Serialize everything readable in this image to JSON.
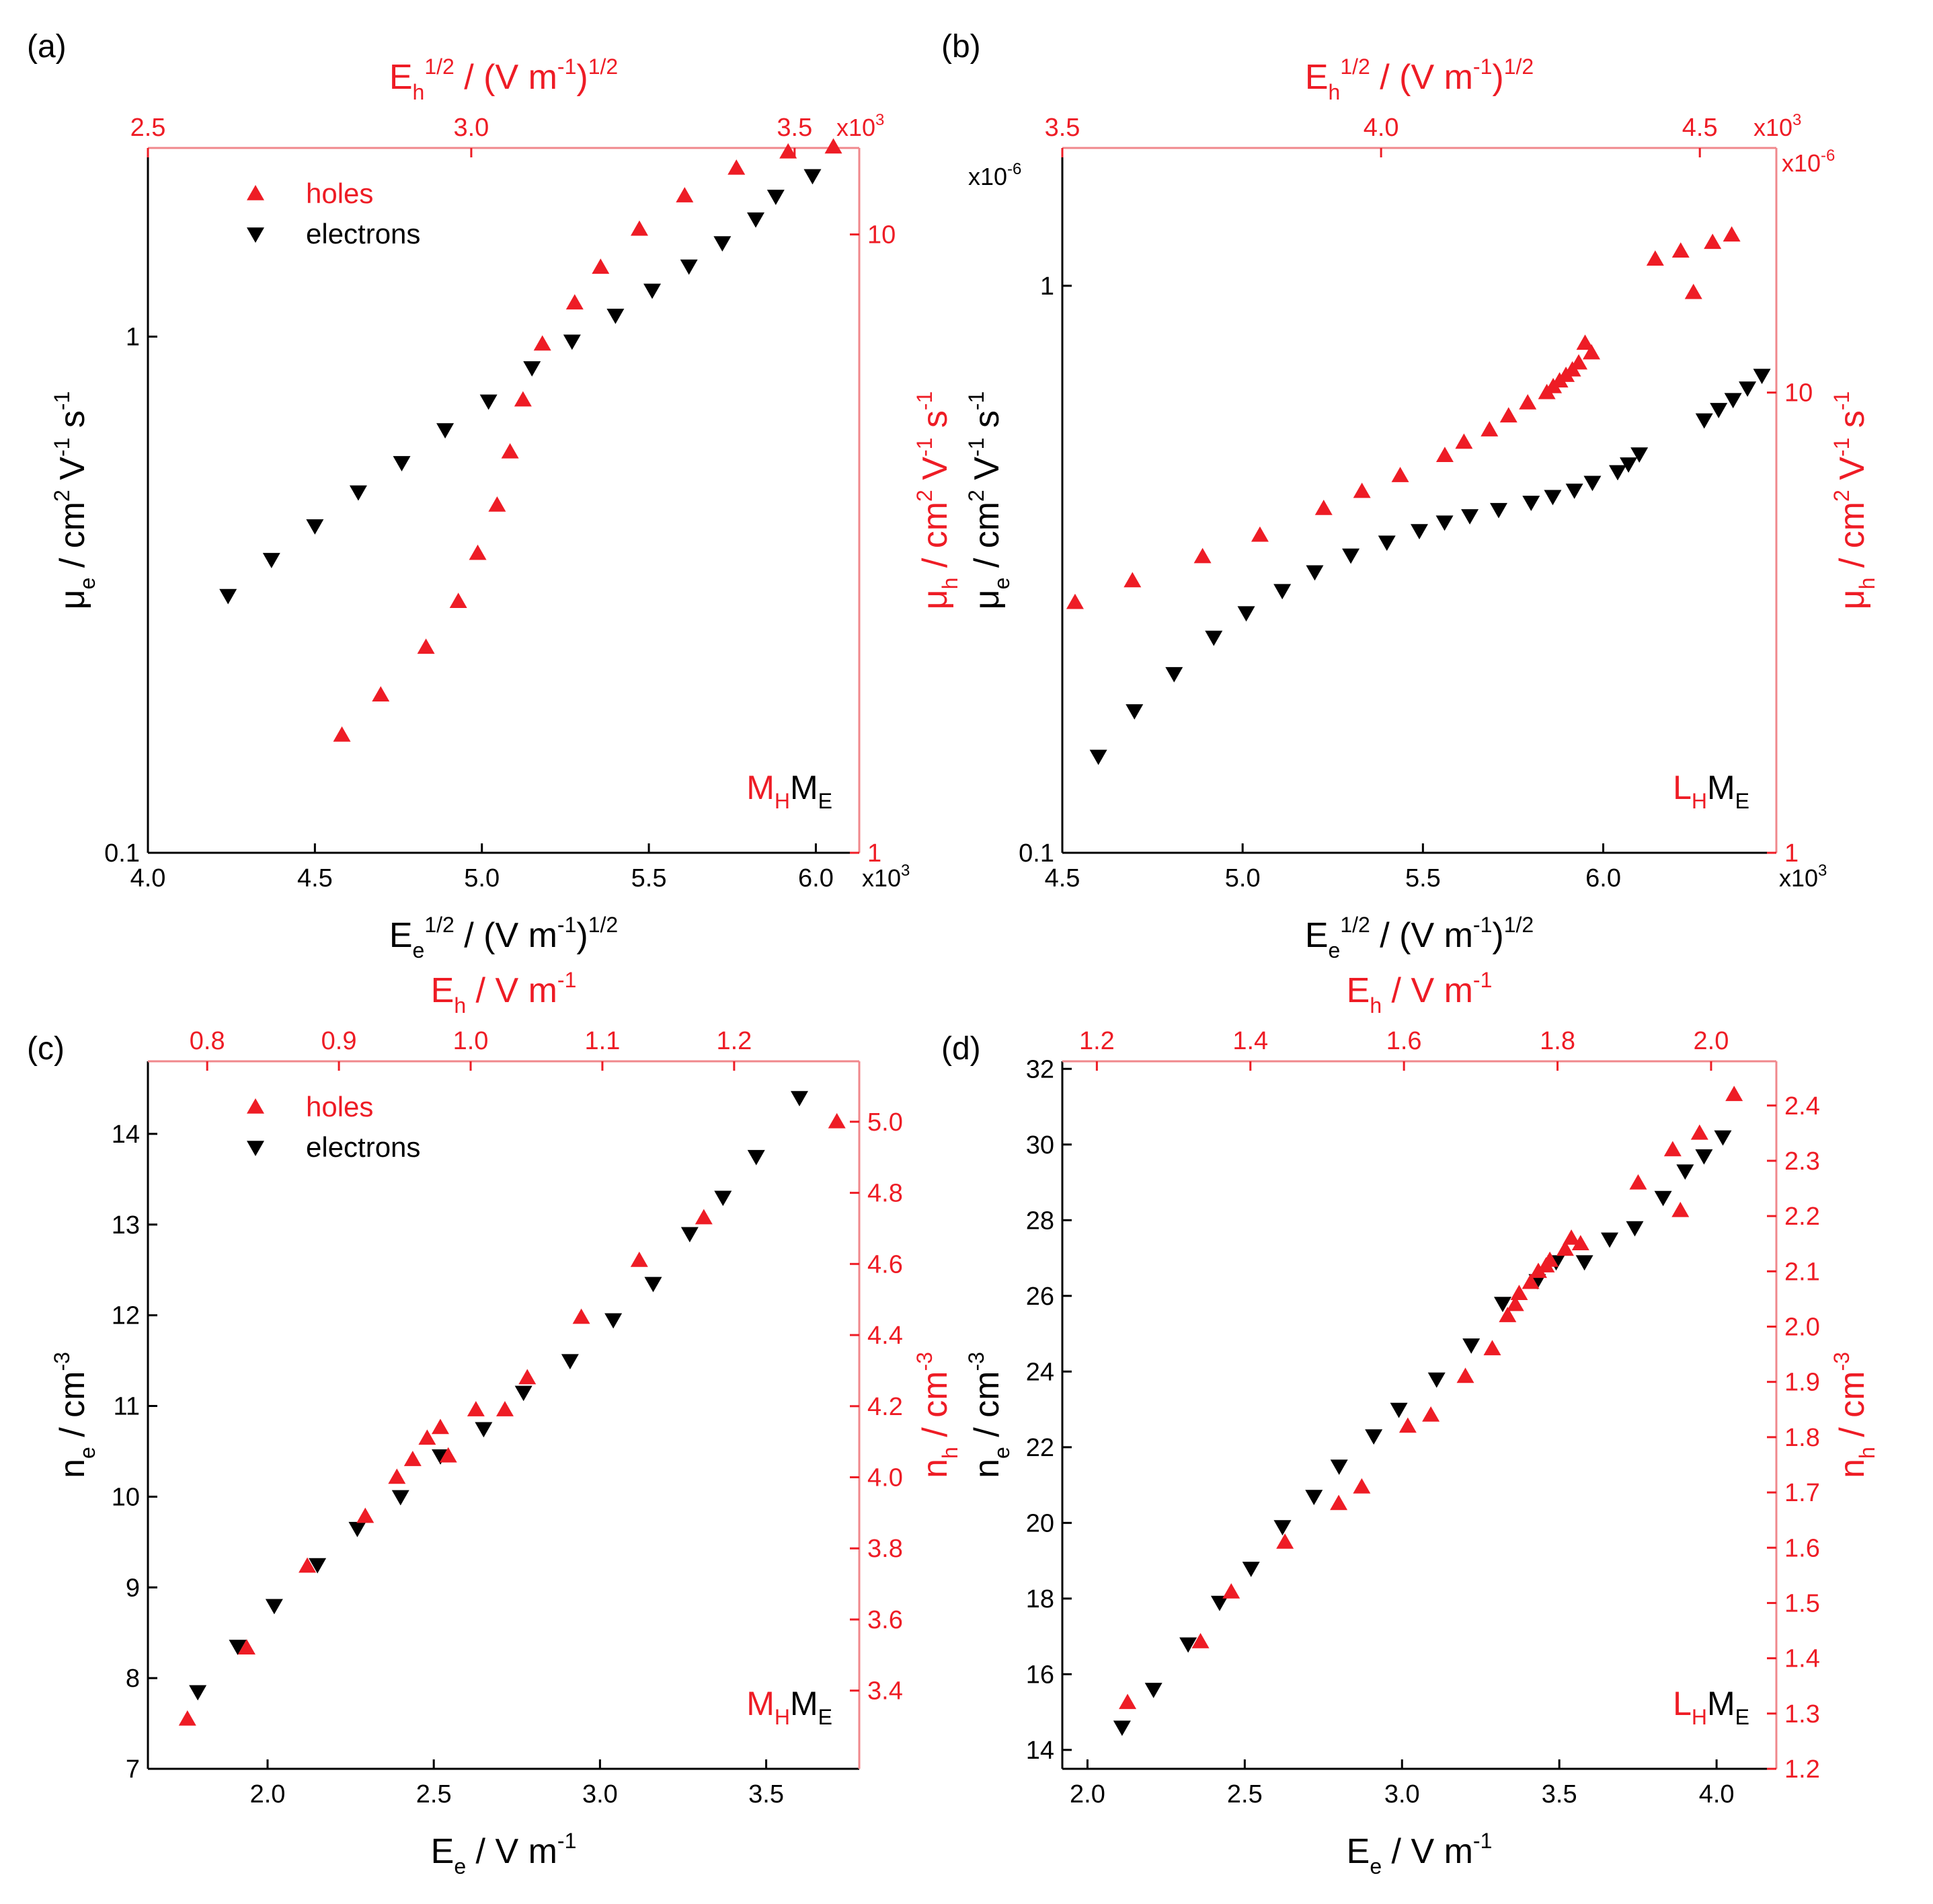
{
  "colors": {
    "holes": "#ee1c25",
    "electrons": "#000000",
    "frame_right": "#f0888c"
  },
  "chart_data": [
    {
      "id": "a",
      "panel_label": "(a)",
      "type": "scatter",
      "xlabel": {
        "base": "E",
        "sub": "e",
        "sup": "1/2",
        "rest": " / (V m",
        "rest_sup": "-1",
        "tail": ")",
        "tail_sup": "1/2"
      },
      "x2label": {
        "base": "E",
        "sub": "h",
        "sup": "1/2",
        "rest": " / (V m",
        "rest_sup": "-1",
        "tail": ")",
        "tail_sup": "1/2"
      },
      "ylabel": {
        "base": "μ",
        "sub": "e",
        "rest": " / cm",
        "sup2": "2",
        "rest2": " V",
        "sup3": "-1",
        "rest3": " s",
        "sup4": "-1"
      },
      "y2label": {
        "base": "μ",
        "sub": "h",
        "rest": " / cm",
        "sup2": "2",
        "rest2": " V",
        "sup3": "-1",
        "rest3": " s",
        "sup4": "-1"
      },
      "legend": {
        "holes": "holes",
        "electrons": "electrons"
      },
      "sample_label": {
        "h": "M",
        "h_sub": "H",
        "e": "M",
        "e_sub": "E"
      },
      "x_axis": {
        "range": [
          4000,
          6130
        ],
        "ticks": [
          4000,
          4500,
          5000,
          5500,
          6000
        ],
        "tick_labels": [
          "4.0",
          "4.5",
          "5.0",
          "5.5",
          "6.0"
        ],
        "multiplier": "x10",
        "multiplier_exp": "3"
      },
      "x2_axis": {
        "range": [
          2500,
          3600
        ],
        "ticks": [
          2500,
          3000,
          3500
        ],
        "tick_labels": [
          "2.5",
          "3.0",
          "3.5"
        ],
        "multiplier": "x10",
        "multiplier_exp": "3"
      },
      "y_axis": {
        "scale": "log",
        "range": [
          0.1,
          2.32
        ],
        "ticks": [
          0.1,
          1
        ],
        "tick_labels": [
          "0.1",
          "1"
        ]
      },
      "y2_axis": {
        "scale": "log",
        "range": [
          1,
          13.8
        ],
        "ticks": [
          1,
          10
        ],
        "tick_labels": [
          "1",
          "10"
        ]
      },
      "series": [
        {
          "name": "electrons",
          "marker": "triangle-down",
          "axis": "primary",
          "x": [
            4240,
            4370,
            4500,
            4630,
            4760,
            4890,
            5020,
            5150,
            5270,
            5400,
            5510,
            5620,
            5720,
            5820,
            5880,
            5990
          ],
          "y": [
            0.315,
            0.37,
            0.43,
            0.5,
            0.57,
            0.66,
            0.75,
            0.87,
            0.98,
            1.1,
            1.23,
            1.37,
            1.52,
            1.69,
            1.87,
            2.05
          ]
        },
        {
          "name": "holes",
          "marker": "triangle-up",
          "axis": "secondary",
          "x": [
            2800,
            2860,
            2930,
            2980,
            3010,
            3040,
            3060,
            3080,
            3110,
            3160,
            3200,
            3260,
            3330,
            3410,
            3490,
            3560
          ],
          "y": [
            1.55,
            1.8,
            2.15,
            2.55,
            3.05,
            3.65,
            4.45,
            5.4,
            6.65,
            7.75,
            8.85,
            10.2,
            11.55,
            12.8,
            13.6,
            13.85
          ]
        }
      ]
    },
    {
      "id": "b",
      "panel_label": "(b)",
      "type": "scatter",
      "xlabel": {
        "base": "E",
        "sub": "e",
        "sup": "1/2",
        "rest": " / (V m",
        "rest_sup": "-1",
        "tail": ")",
        "tail_sup": "1/2"
      },
      "x2label": {
        "base": "E",
        "sub": "h",
        "sup": "1/2",
        "rest": " / (V m",
        "rest_sup": "-1",
        "tail": ")",
        "tail_sup": "1/2"
      },
      "ylabel": {
        "base": "μ",
        "sub": "e",
        "rest": " / cm",
        "sup2": "2",
        "rest2": " V",
        "sup3": "-1",
        "rest3": " s",
        "sup4": "-1"
      },
      "y2label": {
        "base": "μ",
        "sub": "h",
        "rest": " / cm",
        "sup2": "2",
        "rest2": " V",
        "sup3": "-1",
        "rest3": " s",
        "sup4": "-1"
      },
      "sample_label": {
        "h": "L",
        "h_sub": "H",
        "e": "M",
        "e_sub": "E"
      },
      "y_multiplier": {
        "text": "x10",
        "exp": "-6"
      },
      "y2_multiplier": {
        "text": "x10",
        "exp": "-6"
      },
      "x_axis": {
        "range": [
          4500,
          6480
        ],
        "ticks": [
          4500,
          5000,
          5500,
          6000
        ],
        "tick_labels": [
          "4.5",
          "5.0",
          "5.5",
          "6.0"
        ],
        "multiplier": "x10",
        "multiplier_exp": "3"
      },
      "x2_axis": {
        "range": [
          3500,
          4620
        ],
        "ticks": [
          3500,
          4000,
          4500
        ],
        "tick_labels": [
          "3.5",
          "4.0",
          "4.5"
        ],
        "multiplier": "x10",
        "multiplier_exp": "3"
      },
      "y_axis": {
        "scale": "log",
        "range": [
          0.1,
          1.75
        ],
        "ticks": [
          0.1,
          1
        ],
        "tick_labels": [
          "0.1",
          "1"
        ]
      },
      "y2_axis": {
        "scale": "log",
        "range": [
          1,
          34
        ],
        "ticks": [
          1,
          10
        ],
        "tick_labels": [
          "1",
          "10"
        ]
      },
      "series": [
        {
          "name": "electrons",
          "marker": "triangle-down",
          "axis": "primary",
          "x": [
            4600,
            4700,
            4810,
            4920,
            5010,
            5110,
            5200,
            5300,
            5400,
            5490,
            5560,
            5630,
            5710,
            5800,
            5860,
            5920,
            5970,
            6040,
            6070,
            6100,
            6280,
            6320,
            6360,
            6400,
            6440
          ],
          "y": [
            0.148,
            0.178,
            0.207,
            0.24,
            0.265,
            0.29,
            0.313,
            0.335,
            0.353,
            0.37,
            0.383,
            0.393,
            0.403,
            0.415,
            0.425,
            0.436,
            0.45,
            0.47,
            0.485,
            0.505,
            0.58,
            0.605,
            0.63,
            0.66,
            0.695
          ]
        },
        {
          "name": "holes",
          "marker": "triangle-up",
          "axis": "secondary",
          "x": [
            3520,
            3610,
            3720,
            3810,
            3910,
            3970,
            4030,
            4100,
            4130,
            4170,
            4200,
            4230,
            4260,
            4270,
            4280,
            4290,
            4300,
            4310,
            4320,
            4330,
            4430,
            4470,
            4490,
            4520,
            4550
          ],
          "y": [
            3.5,
            3.9,
            4.4,
            4.9,
            5.6,
            6.1,
            6.6,
            7.3,
            7.8,
            8.3,
            8.9,
            9.5,
            10.0,
            10.3,
            10.6,
            10.9,
            11.2,
            11.6,
            12.8,
            12.2,
            19.5,
            20.3,
            16.5,
            21.2,
            22.0
          ]
        }
      ]
    },
    {
      "id": "c",
      "panel_label": "(c)",
      "type": "scatter",
      "xlabel": {
        "base": "E",
        "sub": "e",
        "rest": " / V m",
        "rest_sup": "-1"
      },
      "x2label": {
        "base": "E",
        "sub": "h",
        "rest": " / V m",
        "rest_sup": "-1"
      },
      "ylabel": {
        "base": "n",
        "sub": "e",
        "rest": " / cm",
        "sup2": "-3"
      },
      "y2label": {
        "base": "n",
        "sub": "h",
        "rest": " / cm",
        "sup2": "-3"
      },
      "legend": {
        "holes": "holes",
        "electrons": "electrons"
      },
      "sample_label": {
        "h": "M",
        "h_sub": "H",
        "e": "M",
        "e_sub": "E"
      },
      "x_axis": {
        "range": [
          1.64,
          3.78
        ],
        "ticks": [
          2.0,
          2.5,
          3.0,
          3.5
        ],
        "tick_labels": [
          "2.0",
          "2.5",
          "3.0",
          "3.5"
        ]
      },
      "x2_axis": {
        "range": [
          0.755,
          1.295
        ],
        "ticks": [
          0.8,
          0.9,
          1.0,
          1.1,
          1.2
        ],
        "tick_labels": [
          "0.8",
          "0.9",
          "1.0",
          "1.1",
          "1.2"
        ]
      },
      "y_axis": {
        "scale": "linear",
        "range": [
          7,
          14.8
        ],
        "ticks": [
          7,
          8,
          9,
          10,
          11,
          12,
          13,
          14
        ],
        "tick_labels": [
          "7",
          "8",
          "9",
          "10",
          "11",
          "12",
          "13",
          "14"
        ]
      },
      "y2_axis": {
        "scale": "linear",
        "range": [
          3.18,
          5.17
        ],
        "ticks": [
          3.4,
          3.6,
          3.8,
          4.0,
          4.2,
          4.4,
          4.6,
          4.8,
          5.0
        ],
        "tick_labels": [
          "3.4",
          "3.6",
          "3.8",
          "4.0",
          "4.2",
          "4.4",
          "4.6",
          "4.8",
          "5.0"
        ]
      },
      "series": [
        {
          "name": "electrons",
          "marker": "triangle-down",
          "axis": "primary",
          "x": [
            1.79,
            1.91,
            2.02,
            2.15,
            2.27,
            2.4,
            2.52,
            2.65,
            2.77,
            2.91,
            3.04,
            3.16,
            3.27,
            3.37,
            3.47,
            3.6
          ],
          "y": [
            7.85,
            8.35,
            8.8,
            9.25,
            9.65,
            10.0,
            10.45,
            10.75,
            11.15,
            11.5,
            11.95,
            12.35,
            12.9,
            13.3,
            13.75,
            14.4
          ]
        },
        {
          "name": "holes",
          "marker": "triangle-up",
          "axis": "secondary",
          "x": [
            0.785,
            0.83,
            0.876,
            0.92,
            0.944,
            0.956,
            0.967,
            0.977,
            0.983,
            1.004,
            1.026,
            1.043,
            1.084,
            1.128,
            1.177,
            1.278
          ],
          "y": [
            3.32,
            3.52,
            3.75,
            3.89,
            4.0,
            4.05,
            4.11,
            4.14,
            4.06,
            4.19,
            4.19,
            4.28,
            4.45,
            4.61,
            4.73,
            5.0
          ]
        }
      ]
    },
    {
      "id": "d",
      "panel_label": "(d)",
      "type": "scatter",
      "xlabel": {
        "base": "E",
        "sub": "e",
        "rest": " / V m",
        "rest_sup": "-1"
      },
      "x2label": {
        "base": "E",
        "sub": "h",
        "rest": " / V m",
        "rest_sup": "-1"
      },
      "ylabel": {
        "base": "n",
        "sub": "e",
        "rest": " / cm",
        "sup2": "-3"
      },
      "y2label": {
        "base": "n",
        "sub": "h",
        "rest": " / cm",
        "sup2": "-3"
      },
      "sample_label": {
        "h": "L",
        "h_sub": "H",
        "e": "M",
        "e_sub": "E"
      },
      "x_axis": {
        "range": [
          1.92,
          4.19
        ],
        "ticks": [
          2.0,
          2.5,
          3.0,
          3.5,
          4.0
        ],
        "tick_labels": [
          "2.0",
          "2.5",
          "3.0",
          "3.5",
          "4.0"
        ]
      },
      "x2_axis": {
        "range": [
          1.155,
          2.085
        ],
        "ticks": [
          1.2,
          1.4,
          1.6,
          1.8,
          2.0
        ],
        "tick_labels": [
          "1.2",
          "1.4",
          "1.6",
          "1.8",
          "2.0"
        ]
      },
      "y_axis": {
        "scale": "linear",
        "range": [
          13.5,
          32.2
        ],
        "ticks": [
          14,
          16,
          18,
          20,
          22,
          24,
          26,
          28,
          30,
          32
        ],
        "tick_labels": [
          "14",
          "16",
          "18",
          "20",
          "22",
          "24",
          "26",
          "28",
          "30",
          "32"
        ]
      },
      "y2_axis": {
        "scale": "linear",
        "range": [
          1.2,
          2.48
        ],
        "ticks": [
          1.2,
          1.3,
          1.4,
          1.5,
          1.6,
          1.7,
          1.8,
          1.9,
          2.0,
          2.1,
          2.2,
          2.3,
          2.4
        ],
        "tick_labels": [
          "1.2",
          "1.3",
          "1.4",
          "1.5",
          "1.6",
          "1.7",
          "1.8",
          "1.9",
          "2.0",
          "2.1",
          "2.2",
          "2.3",
          "2.4"
        ]
      },
      "series": [
        {
          "name": "electrons",
          "marker": "triangle-down",
          "axis": "primary",
          "x": [
            2.11,
            2.21,
            2.32,
            2.42,
            2.52,
            2.62,
            2.72,
            2.8,
            2.91,
            2.99,
            3.11,
            3.22,
            3.32,
            3.43,
            3.49,
            3.58,
            3.66,
            3.74,
            3.83,
            3.9,
            3.96,
            4.02
          ],
          "y": [
            14.6,
            15.6,
            16.8,
            17.9,
            18.8,
            19.9,
            20.7,
            21.5,
            22.3,
            23.0,
            23.8,
            24.7,
            25.8,
            26.4,
            26.9,
            26.9,
            27.5,
            27.8,
            28.6,
            29.3,
            29.7,
            30.2
          ]
        },
        {
          "name": "holes",
          "marker": "triangle-up",
          "axis": "secondary",
          "x": [
            1.24,
            1.335,
            1.375,
            1.445,
            1.515,
            1.545,
            1.605,
            1.635,
            1.68,
            1.715,
            1.735,
            1.745,
            1.75,
            1.765,
            1.775,
            1.785,
            1.79,
            1.81,
            1.818,
            1.83,
            1.905,
            1.95,
            1.96,
            1.985,
            2.03
          ],
          "y": [
            1.32,
            1.43,
            1.52,
            1.61,
            1.68,
            1.71,
            1.82,
            1.84,
            1.91,
            1.96,
            2.02,
            2.04,
            2.06,
            2.08,
            2.1,
            2.11,
            2.12,
            2.14,
            2.16,
            2.15,
            2.26,
            2.32,
            2.21,
            2.35,
            2.42
          ]
        }
      ]
    }
  ]
}
